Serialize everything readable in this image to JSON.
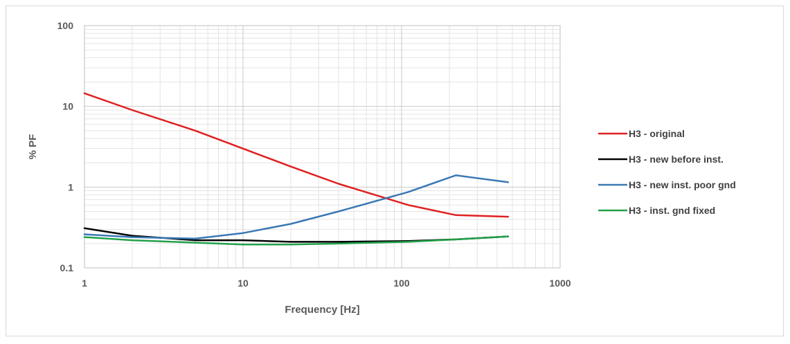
{
  "chart_data": {
    "type": "line",
    "title": "",
    "xlabel": "Frequency [Hz]",
    "ylabel": "% PF",
    "xscale": "log",
    "yscale": "log",
    "xlim": [
      1,
      1000
    ],
    "ylim": [
      0.1,
      100
    ],
    "xticks": [
      "1",
      "10",
      "100",
      "1000"
    ],
    "yticks": [
      "100",
      "10",
      "1",
      "0.1"
    ],
    "grid": true,
    "legend_position": "right",
    "series": [
      {
        "name": "H3 - original",
        "color": "#e02020",
        "x": [
          1,
          2,
          5,
          10,
          20,
          40,
          110,
          220,
          470
        ],
        "y": [
          14.5,
          9.0,
          5.0,
          3.0,
          1.8,
          1.1,
          0.6,
          0.45,
          0.43
        ]
      },
      {
        "name": "H3 - new before inst.",
        "color": "#000000",
        "x": [
          1,
          2,
          5,
          10,
          20,
          40,
          110,
          220,
          470
        ],
        "y": [
          0.31,
          0.25,
          0.22,
          0.22,
          0.21,
          0.21,
          0.215,
          0.225,
          0.245
        ]
      },
      {
        "name": "H3 - new inst. poor gnd",
        "color": "#3a78b5",
        "x": [
          1,
          2,
          5,
          10,
          20,
          40,
          110,
          220,
          470
        ],
        "y": [
          0.26,
          0.24,
          0.23,
          0.27,
          0.35,
          0.5,
          0.87,
          1.4,
          1.15
        ]
      },
      {
        "name": "H3 - inst. gnd fixed",
        "color": "#22a04a",
        "x": [
          1,
          2,
          5,
          10,
          20,
          40,
          110,
          220,
          470
        ],
        "y": [
          0.24,
          0.22,
          0.205,
          0.195,
          0.195,
          0.2,
          0.21,
          0.225,
          0.245
        ]
      }
    ]
  }
}
